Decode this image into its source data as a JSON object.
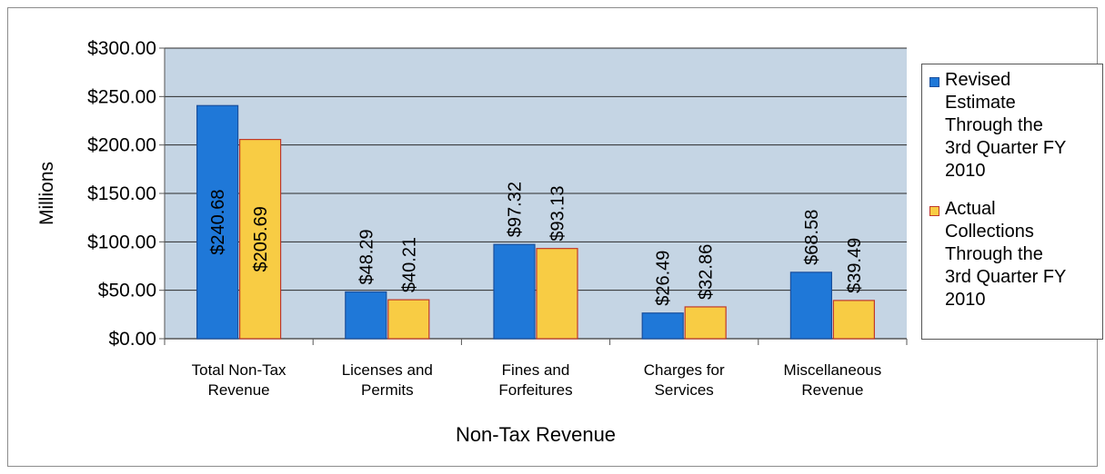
{
  "chart_data": {
    "type": "bar",
    "title": "",
    "xlabel": "Non-Tax Revenue",
    "ylabel": "Millions",
    "ylim": [
      0,
      300
    ],
    "yticks": [
      0,
      50,
      100,
      150,
      200,
      250,
      300
    ],
    "ytick_labels": [
      "$0.00",
      "$50.00",
      "$100.00",
      "$150.00",
      "$200.00",
      "$250.00",
      "$300.00"
    ],
    "categories": [
      [
        "Total Non-Tax",
        "Revenue"
      ],
      [
        "Licenses and",
        "Permits"
      ],
      [
        "Fines and",
        "Forfeitures"
      ],
      [
        "Charges for",
        "Services"
      ],
      [
        "Miscellaneous",
        "Revenue"
      ]
    ],
    "series": [
      {
        "name": "Revised Estimate Through the 3rd Quarter FY 2010",
        "legend_lines": [
          "Revised",
          "Estimate",
          "Through the",
          "3rd Quarter FY",
          "2010"
        ],
        "color": "#1f78d8",
        "values": [
          240.68,
          48.29,
          97.32,
          26.49,
          68.58
        ],
        "labels": [
          "$240.68",
          "$48.29",
          "$97.32",
          "$26.49",
          "$68.58"
        ]
      },
      {
        "name": "Actual Collections Through the 3rd Quarter FY 2010",
        "legend_lines": [
          "Actual",
          "Collections",
          "Through the",
          "3rd Quarter FY",
          "2010"
        ],
        "color": "#f8cc44",
        "values": [
          205.69,
          40.21,
          93.13,
          32.86,
          39.49
        ],
        "labels": [
          "$205.69",
          "$40.21",
          "$93.13",
          "$32.86",
          "$39.49"
        ]
      }
    ],
    "grid": true,
    "legend_position": "right",
    "plot_background": "#c5d5e4"
  }
}
